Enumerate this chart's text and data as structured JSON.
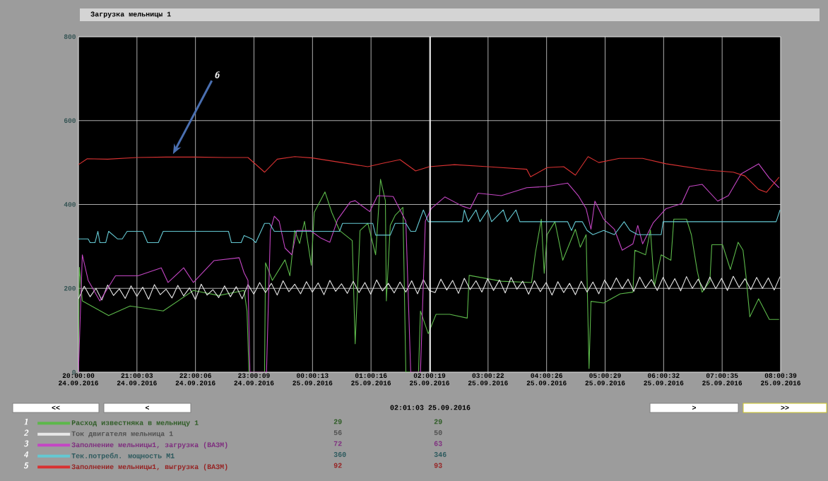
{
  "chart_data": {
    "type": "line",
    "title": "Загрузка мельницы 1",
    "xlim": [
      "2016-09-24T20:00:00",
      "2016-09-25T08:00:39"
    ],
    "ylim": [
      0,
      800
    ],
    "xticks": [
      {
        "value": "2016-09-24T20:00:00",
        "label": "20:00:00 24.09.2016"
      },
      {
        "value": "2016-09-24T21:00:03",
        "label": "21:00:03 24.09.2016"
      },
      {
        "value": "2016-09-24T22:00:06",
        "label": "22:00:06 24.09.2016"
      },
      {
        "value": "2016-09-24T23:00:09",
        "label": "23:00:09 24.09.2016"
      },
      {
        "value": "2016-09-25T00:00:13",
        "label": "00:00:13 25.09.2016"
      },
      {
        "value": "2016-09-25T01:00:16",
        "label": "01:00:16 25.09.2016"
      },
      {
        "value": "2016-09-25T02:00:19",
        "label": "02:00:19 25.09.2016"
      },
      {
        "value": "2016-09-25T03:00:22",
        "label": "03:00:22 25.09.2016"
      },
      {
        "value": "2016-09-25T04:00:26",
        "label": "04:00:26 25.09.2016"
      },
      {
        "value": "2016-09-25T05:00:29",
        "label": "05:00:29 25.09.2016"
      },
      {
        "value": "2016-09-25T06:00:32",
        "label": "06:00:32 25.09.2016"
      },
      {
        "value": "2016-09-25T07:00:35",
        "label": "07:00:35 25.09.2016"
      },
      {
        "value": "2016-09-25T08:00:39",
        "label": "08:00:39 25.09.2016"
      }
    ],
    "yticks": [
      0,
      200,
      400,
      600,
      800
    ],
    "grid": true,
    "legend": "bottom",
    "line_style": "solid",
    "series": [
      {
        "name": "Расход известняка в мельницу 1",
        "color": "#5cb84a",
        "x": [
          "2016-09-24T20:00",
          "2016-09-24T20:01",
          "2016-09-24T20:04",
          "2016-09-24T20:31",
          "2016-09-24T20:53",
          "2016-09-24T21:27",
          "2016-09-24T21:58",
          "2016-09-24T22:24",
          "2016-09-24T22:50",
          "2016-09-24T22:53",
          "2016-09-24T22:55",
          "2016-09-24T23:11",
          "2016-09-24T23:12",
          "2016-09-24T23:19",
          "2016-09-24T23:32",
          "2016-09-24T23:37",
          "2016-09-24T23:42",
          "2016-09-24T23:47",
          "2016-09-24T23:52",
          "2016-09-24T23:59",
          "2016-09-25T00:02",
          "2016-09-25T00:13",
          "2016-09-25T00:20",
          "2016-09-25T00:28",
          "2016-09-25T00:41",
          "2016-09-25T00:44",
          "2016-09-25T00:49",
          "2016-09-25T00:57",
          "2016-09-25T01:05",
          "2016-09-25T01:10",
          "2016-09-25T01:15",
          "2016-09-25T01:16",
          "2016-09-25T01:20",
          "2016-09-25T01:25",
          "2016-09-25T01:33",
          "2016-09-25T01:36",
          "2016-09-25T01:49",
          "2016-09-25T01:51",
          "2016-09-25T01:59",
          "2016-09-25T02:07",
          "2016-09-25T02:21",
          "2016-09-25T02:39",
          "2016-09-25T02:41",
          "2016-09-25T03:14",
          "2016-09-25T03:45",
          "2016-09-25T03:49",
          "2016-09-25T03:55",
          "2016-09-25T03:58",
          "2016-09-25T04:01",
          "2016-09-25T04:09",
          "2016-09-25T04:17",
          "2016-09-25T04:30",
          "2016-09-25T04:35",
          "2016-09-25T04:41",
          "2016-09-25T04:44",
          "2016-09-25T04:46",
          "2016-09-25T04:59",
          "2016-09-25T05:16",
          "2016-09-25T05:29",
          "2016-09-25T05:31",
          "2016-09-25T05:42",
          "2016-09-25T05:47",
          "2016-09-25T05:51",
          "2016-09-25T05:58",
          "2016-09-25T06:08",
          "2016-09-25T06:11",
          "2016-09-25T06:24",
          "2016-09-25T06:29",
          "2016-09-25T06:35",
          "2016-09-25T06:40",
          "2016-09-25T06:48",
          "2016-09-25T06:50",
          "2016-09-25T07:01",
          "2016-09-25T07:09",
          "2016-09-25T07:17",
          "2016-09-25T07:22",
          "2016-09-25T07:25",
          "2016-09-25T07:29",
          "2016-09-25T07:38",
          "2016-09-25T07:49",
          "2016-09-25T07:59"
        ],
        "values": [
          40,
          250,
          170,
          135,
          158,
          146,
          195,
          183,
          195,
          146,
          0,
          0,
          261,
          219,
          268,
          230,
          338,
          307,
          360,
          255,
          381,
          430,
          381,
          338,
          314,
          68,
          338,
          355,
          280,
          460,
          409,
          170,
          350,
          374,
          393,
          0,
          0,
          146,
          92,
          138,
          138,
          129,
          231,
          217,
          214,
          285,
          365,
          236,
          328,
          359,
          267,
          341,
          298,
          328,
          9,
          169,
          165,
          187,
          191,
          291,
          280,
          339,
          205,
          280,
          267,
          365,
          365,
          328,
          242,
          191,
          217,
          304,
          304,
          245,
          310,
          291,
          231,
          132,
          175,
          126,
          126
        ]
      },
      {
        "name": "Ток двигателя мельница 1",
        "color": "#e8e8e8",
        "x": [
          "2016-09-24T20:00",
          "2016-09-24T20:06",
          "2016-09-24T20:12",
          "2016-09-24T20:18",
          "2016-09-24T20:24",
          "2016-09-24T20:30",
          "2016-09-24T20:36",
          "2016-09-24T20:42",
          "2016-09-24T20:48",
          "2016-09-24T20:54",
          "2016-09-24T21:00",
          "2016-09-24T21:06",
          "2016-09-24T21:12",
          "2016-09-24T21:18",
          "2016-09-24T21:24",
          "2016-09-24T21:30",
          "2016-09-24T21:36",
          "2016-09-24T21:42",
          "2016-09-24T21:48",
          "2016-09-24T21:54",
          "2016-09-24T22:00",
          "2016-09-24T22:06",
          "2016-09-24T22:12",
          "2016-09-24T22:18",
          "2016-09-24T22:24",
          "2016-09-24T22:30",
          "2016-09-24T22:36",
          "2016-09-24T22:42",
          "2016-09-24T22:48",
          "2016-09-24T22:54",
          "2016-09-24T23:00",
          "2016-09-24T23:06",
          "2016-09-24T23:12",
          "2016-09-24T23:18",
          "2016-09-24T23:24",
          "2016-09-24T23:30",
          "2016-09-24T23:36",
          "2016-09-24T23:42",
          "2016-09-24T23:48",
          "2016-09-24T23:54",
          "2016-09-25T00:00",
          "2016-09-25T00:06",
          "2016-09-25T00:12",
          "2016-09-25T00:18",
          "2016-09-25T00:24",
          "2016-09-25T00:30",
          "2016-09-25T00:36",
          "2016-09-25T00:42",
          "2016-09-25T00:48",
          "2016-09-25T00:54",
          "2016-09-25T01:00",
          "2016-09-25T01:06",
          "2016-09-25T01:12",
          "2016-09-25T01:18",
          "2016-09-25T01:24",
          "2016-09-25T01:30",
          "2016-09-25T01:36",
          "2016-09-25T01:42",
          "2016-09-25T01:48",
          "2016-09-25T01:54",
          "2016-09-25T02:00",
          "2016-09-25T02:06",
          "2016-09-25T02:12",
          "2016-09-25T02:18",
          "2016-09-25T02:24",
          "2016-09-25T02:30",
          "2016-09-25T02:36",
          "2016-09-25T02:42",
          "2016-09-25T02:48",
          "2016-09-25T02:54",
          "2016-09-25T03:00",
          "2016-09-25T03:06",
          "2016-09-25T03:12",
          "2016-09-25T03:18",
          "2016-09-25T03:24",
          "2016-09-25T03:30",
          "2016-09-25T03:36",
          "2016-09-25T03:42",
          "2016-09-25T03:48",
          "2016-09-25T03:54",
          "2016-09-25T04:00",
          "2016-09-25T04:06",
          "2016-09-25T04:12",
          "2016-09-25T04:18",
          "2016-09-25T04:24",
          "2016-09-25T04:30",
          "2016-09-25T04:36",
          "2016-09-25T04:42",
          "2016-09-25T04:48",
          "2016-09-25T04:54",
          "2016-09-25T05:00",
          "2016-09-25T05:06",
          "2016-09-25T05:12",
          "2016-09-25T05:18",
          "2016-09-25T05:24",
          "2016-09-25T05:30",
          "2016-09-25T05:36",
          "2016-09-25T05:42",
          "2016-09-25T05:48",
          "2016-09-25T05:54",
          "2016-09-25T06:00",
          "2016-09-25T06:06",
          "2016-09-25T06:12",
          "2016-09-25T06:18",
          "2016-09-25T06:24",
          "2016-09-25T06:30",
          "2016-09-25T06:36",
          "2016-09-25T06:42",
          "2016-09-25T06:48",
          "2016-09-25T06:54",
          "2016-09-25T07:00",
          "2016-09-25T07:06",
          "2016-09-25T07:12",
          "2016-09-25T07:18",
          "2016-09-25T07:24",
          "2016-09-25T07:30",
          "2016-09-25T07:36",
          "2016-09-25T07:42",
          "2016-09-25T07:48",
          "2016-09-25T07:54",
          "2016-09-25T08:00"
        ],
        "values": [
          175,
          205,
          180,
          200,
          172,
          208,
          183,
          199,
          176,
          206,
          181,
          203,
          174,
          209,
          185,
          198,
          177,
          207,
          182,
          201,
          173,
          210,
          184,
          197,
          178,
          206,
          180,
          204,
          175,
          209,
          186,
          214,
          190,
          212,
          184,
          218,
          192,
          210,
          187,
          216,
          191,
          213,
          185,
          219,
          193,
          211,
          188,
          217,
          190,
          214,
          186,
          220,
          194,
          212,
          189,
          215,
          191,
          218,
          187,
          221,
          195,
          190,
          222,
          196,
          219,
          188,
          224,
          197,
          218,
          191,
          223,
          195,
          220,
          189,
          226,
          198,
          217,
          186,
          218,
          192,
          214,
          184,
          216,
          190,
          212,
          185,
          217,
          191,
          215,
          187,
          220,
          196,
          225,
          199,
          222,
          193,
          227,
          201,
          221,
          195,
          226,
          198,
          223,
          194,
          228,
          200,
          222,
          196,
          227,
          199,
          224,
          195,
          229,
          202,
          223,
          197,
          226,
          200,
          225,
          196,
          228
        ]
      },
      {
        "name": "Заполнение мельницы1, загрузка (ВАЗМ)",
        "color": "#c446c4",
        "x": [
          "2016-09-24T20:00",
          "2016-09-24T20:04",
          "2016-09-24T20:10",
          "2016-09-24T20:22",
          "2016-09-24T20:38",
          "2016-09-24T21:01",
          "2016-09-24T21:25",
          "2016-09-24T21:32",
          "2016-09-24T21:48",
          "2016-09-24T21:58",
          "2016-09-24T22:19",
          "2016-09-24T22:45",
          "2016-09-24T22:50",
          "2016-09-24T22:54",
          "2016-09-24T22:56",
          "2016-09-24T23:13",
          "2016-09-24T23:17",
          "2016-09-24T23:21",
          "2016-09-24T23:26",
          "2016-09-24T23:32",
          "2016-09-24T23:39",
          "2016-09-24T23:44",
          "2016-09-24T23:58",
          "2016-09-25T00:08",
          "2016-09-25T00:18",
          "2016-09-25T00:26",
          "2016-09-25T00:39",
          "2016-09-25T00:44",
          "2016-09-25T00:49",
          "2016-09-25T00:59",
          "2016-09-25T01:07",
          "2016-09-25T01:23",
          "2016-09-25T01:31",
          "2016-09-25T01:36",
          "2016-09-25T01:41",
          "2016-09-25T01:51",
          "2016-09-25T01:56",
          "2016-09-25T02:02",
          "2016-09-25T02:16",
          "2016-09-25T02:34",
          "2016-09-25T02:42",
          "2016-09-25T02:50",
          "2016-09-25T03:14",
          "2016-09-25T03:40",
          "2016-09-25T04:01",
          "2016-09-25T04:22",
          "2016-09-25T04:33",
          "2016-09-25T04:41",
          "2016-09-25T04:46",
          "2016-09-25T04:50",
          "2016-09-25T04:59",
          "2016-09-25T05:10",
          "2016-09-25T05:18",
          "2016-09-25T05:29",
          "2016-09-25T05:34",
          "2016-09-25T05:39",
          "2016-09-25T05:50",
          "2016-09-25T06:03",
          "2016-09-25T06:19",
          "2016-09-25T06:27",
          "2016-09-25T06:40",
          "2016-09-25T06:56",
          "2016-09-25T07:07",
          "2016-09-25T07:20",
          "2016-09-25T07:38",
          "2016-09-25T07:49",
          "2016-09-25T07:59"
        ],
        "values": [
          0,
          280,
          219,
          170,
          230,
          230,
          249,
          214,
          249,
          214,
          266,
          273,
          237,
          219,
          0,
          0,
          338,
          372,
          360,
          296,
          280,
          338,
          338,
          321,
          310,
          364,
          406,
          409,
          400,
          383,
          421,
          419,
          383,
          360,
          0,
          0,
          360,
          390,
          418,
          396,
          390,
          427,
          421,
          440,
          443,
          451,
          421,
          390,
          341,
          408,
          365,
          341,
          291,
          306,
          350,
          306,
          357,
          390,
          402,
          443,
          448,
          408,
          421,
          473,
          497,
          463,
          440
        ]
      },
      {
        "name": "Тек.потребл. мощность М1",
        "color": "#64c8d2",
        "x": [
          "2016-09-24T20:00",
          "2016-09-24T20:10",
          "2016-09-24T20:12",
          "2016-09-24T20:17",
          "2016-09-24T20:20",
          "2016-09-24T20:22",
          "2016-09-24T20:28",
          "2016-09-24T20:31",
          "2016-09-24T20:40",
          "2016-09-24T20:45",
          "2016-09-24T20:50",
          "2016-09-24T21:06",
          "2016-09-24T21:11",
          "2016-09-24T21:22",
          "2016-09-24T21:27",
          "2016-09-24T22:34",
          "2016-09-24T22:37",
          "2016-09-24T22:47",
          "2016-09-24T22:50",
          "2016-09-24T22:58",
          "2016-09-24T23:02",
          "2016-09-24T23:11",
          "2016-09-24T23:16",
          "2016-09-24T23:21",
          "2016-09-25T00:28",
          "2016-09-25T00:31",
          "2016-09-25T01:02",
          "2016-09-25T01:05",
          "2016-09-25T01:20",
          "2016-09-25T01:25",
          "2016-09-25T01:36",
          "2016-09-25T01:41",
          "2016-09-25T01:46",
          "2016-09-25T01:54",
          "2016-09-25T01:59",
          "2016-09-25T02:34",
          "2016-09-25T02:36",
          "2016-09-25T02:40",
          "2016-09-25T02:48",
          "2016-09-25T02:52",
          "2016-09-25T03:00",
          "2016-09-25T03:04",
          "2016-09-25T03:16",
          "2016-09-25T03:20",
          "2016-09-25T03:29",
          "2016-09-25T03:33",
          "2016-09-25T04:22",
          "2016-09-25T04:26",
          "2016-09-25T04:30",
          "2016-09-25T04:37",
          "2016-09-25T04:42",
          "2016-09-25T04:48",
          "2016-09-25T04:59",
          "2016-09-25T05:10",
          "2016-09-25T05:20",
          "2016-09-25T05:26",
          "2016-09-25T05:34",
          "2016-09-25T05:58",
          "2016-09-25T06:00",
          "2016-09-25T07:56",
          "2016-09-25T08:00"
        ],
        "values": [
          318,
          318,
          309,
          309,
          336,
          309,
          309,
          336,
          318,
          318,
          336,
          336,
          309,
          309,
          336,
          336,
          309,
          309,
          326,
          318,
          309,
          355,
          355,
          336,
          336,
          355,
          355,
          327,
          327,
          355,
          355,
          336,
          336,
          387,
          359,
          359,
          387,
          359,
          387,
          359,
          387,
          359,
          387,
          359,
          387,
          359,
          359,
          338,
          359,
          359,
          338,
          328,
          338,
          328,
          359,
          338,
          328,
          328,
          359,
          359,
          387
        ]
      },
      {
        "name": "Заполнение мельницы1, выгрузка (ВАЗМ)",
        "color": "#d83232",
        "x": [
          "2016-09-24T20:00",
          "2016-09-24T20:09",
          "2016-09-24T20:30",
          "2016-09-24T21:00",
          "2016-09-24T21:30",
          "2016-09-24T22:00",
          "2016-09-24T22:30",
          "2016-09-24T22:54",
          "2016-09-24T23:11",
          "2016-09-24T23:24",
          "2016-09-24T23:42",
          "2016-09-25T00:00",
          "2016-09-25T00:30",
          "2016-09-25T00:57",
          "2016-09-25T01:12",
          "2016-09-25T01:30",
          "2016-09-25T01:46",
          "2016-09-25T02:00",
          "2016-09-25T02:26",
          "2016-09-25T03:00",
          "2016-09-25T03:40",
          "2016-09-25T03:44",
          "2016-09-25T04:01",
          "2016-09-25T04:18",
          "2016-09-25T04:30",
          "2016-09-25T04:43",
          "2016-09-25T04:54",
          "2016-09-25T05:15",
          "2016-09-25T05:39",
          "2016-09-25T06:03",
          "2016-09-25T06:45",
          "2016-09-25T07:12",
          "2016-09-25T07:24",
          "2016-09-25T07:38",
          "2016-09-25T07:46",
          "2016-09-25T07:59"
        ],
        "values": [
          495,
          509,
          508,
          512,
          513,
          513,
          512,
          512,
          477,
          508,
          514,
          511,
          500,
          490,
          498,
          507,
          480,
          490,
          495,
          490,
          484,
          466,
          488,
          490,
          470,
          514,
          500,
          510,
          510,
          497,
          482,
          477,
          468,
          436,
          429,
          465
        ]
      }
    ],
    "ref_lines": [
      {
        "axis": "x",
        "value": "2016-09-25T02:01:03",
        "color": "#ffffff"
      }
    ],
    "annotations": [
      {
        "text": "6",
        "x": "2016-09-24T21:37",
        "y": 520
      },
      "1",
      "2",
      "3",
      "4",
      "5",
      "29",
      "56",
      "72",
      "360",
      "92",
      "29",
      "50",
      "63",
      "346",
      "93",
      "<<",
      "<",
      ">",
      ">>",
      "02:01:03 25.09.2016"
    ]
  }
}
